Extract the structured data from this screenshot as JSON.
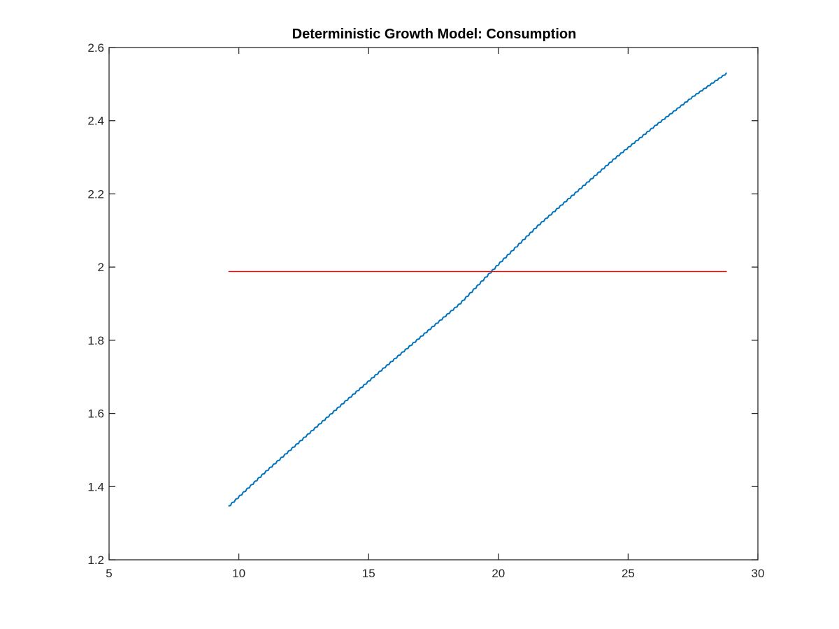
{
  "chart_data": {
    "type": "line",
    "title": "Deterministic Growth Model: Consumption",
    "xlabel": "",
    "ylabel": "",
    "xlim": [
      5,
      30
    ],
    "ylim": [
      1.2,
      2.6
    ],
    "xticks": [
      5,
      10,
      15,
      20,
      25,
      30
    ],
    "yticks": [
      1.2,
      1.4,
      1.6,
      1.8,
      2,
      2.2,
      2.4,
      2.6
    ],
    "xtick_labels": [
      "5",
      "10",
      "15",
      "20",
      "25",
      "30"
    ],
    "ytick_labels": [
      "1.2",
      "1.4",
      "1.6",
      "1.8",
      "2",
      "2.2",
      "2.4",
      "2.6"
    ],
    "grid": false,
    "legend": false,
    "series": [
      {
        "color": "#0072bd",
        "style": "step-wave",
        "x": [
          9.6,
          11.0,
          12.5,
          14.0,
          15.5,
          17.0,
          18.5,
          20.0,
          21.5,
          23.0,
          24.5,
          26.0,
          27.5,
          28.8
        ],
        "y": [
          1.347,
          1.44,
          1.534,
          1.628,
          1.72,
          1.81,
          1.9,
          2.009,
          2.113,
          2.206,
          2.299,
          2.385,
          2.467,
          2.531
        ]
      },
      {
        "color": "#ff0000",
        "style": "line",
        "x": [
          9.6,
          28.8
        ],
        "y": [
          1.988,
          1.988
        ]
      }
    ]
  }
}
